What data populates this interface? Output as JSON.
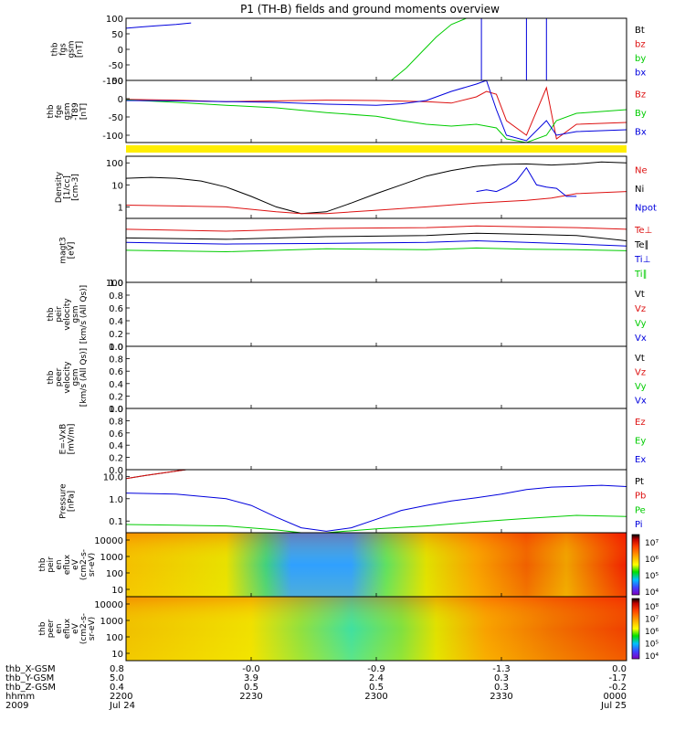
{
  "title": "P1 (TH-B) fields and ground moments overview",
  "colors": {
    "black": "#000000",
    "red": "#dd1111",
    "green": "#00cc00",
    "blue": "#0000dd",
    "yellow_bar": "#ffee00"
  },
  "chart_data": [
    {
      "type": "line",
      "id": "fgs",
      "ylabel": [
        "thb",
        "fgs",
        "gsm",
        "[nT]"
      ],
      "ylim": [
        -100,
        100
      ],
      "yticks": [
        100,
        50,
        0,
        -50,
        -100
      ],
      "legend": [
        {
          "name": "Bt",
          "color": "#000000"
        },
        {
          "name": "bz",
          "color": "#dd1111"
        },
        {
          "name": "by",
          "color": "#00cc00"
        },
        {
          "name": "bx",
          "color": "#0000dd"
        }
      ],
      "series": [
        {
          "name": "bx",
          "color": "#0000dd",
          "x": [
            0,
            0.03,
            0.06,
            0.1,
            0.13
          ],
          "y": [
            68,
            72,
            76,
            80,
            85
          ]
        },
        {
          "name": "by",
          "color": "#00cc00",
          "x": [
            0.53,
            0.56,
            0.59,
            0.62,
            0.65,
            0.68
          ],
          "y": [
            -100,
            -60,
            -10,
            40,
            80,
            100
          ]
        },
        {
          "name": "bx",
          "color": "#0000dd",
          "x": [
            0.69,
            0.71,
            0.71,
            0.8,
            0.8,
            0.84,
            0.84
          ],
          "y": [
            100,
            100,
            -100,
            -100,
            100,
            100,
            -100
          ]
        }
      ]
    },
    {
      "type": "line",
      "id": "fge",
      "ylabel": [
        "thb",
        "fge",
        "gsm",
        "-T89",
        "[nT]"
      ],
      "ylim": [
        -120,
        50
      ],
      "yticks": [
        50,
        0,
        -50,
        -100
      ],
      "legend": [
        {
          "name": "Bz",
          "color": "#dd1111"
        },
        {
          "name": "By",
          "color": "#00cc00"
        },
        {
          "name": "Bx",
          "color": "#0000dd"
        }
      ],
      "series": [
        {
          "name": "Bz",
          "color": "#dd1111",
          "x": [
            0,
            0.1,
            0.2,
            0.3,
            0.4,
            0.5,
            0.6,
            0.65,
            0.7,
            0.72,
            0.74,
            0.76,
            0.8,
            0.84,
            0.86,
            0.9,
            1
          ],
          "y": [
            -2,
            -4,
            -8,
            -6,
            -4,
            -5,
            -8,
            -12,
            5,
            20,
            12,
            -60,
            -100,
            30,
            -110,
            -70,
            -65
          ]
        },
        {
          "name": "By",
          "color": "#00cc00",
          "x": [
            0,
            0.1,
            0.2,
            0.3,
            0.4,
            0.5,
            0.55,
            0.6,
            0.65,
            0.7,
            0.74,
            0.76,
            0.8,
            0.84,
            0.86,
            0.9,
            1
          ],
          "y": [
            -3,
            -10,
            -18,
            -25,
            -38,
            -48,
            -60,
            -70,
            -75,
            -70,
            -80,
            -110,
            -120,
            -100,
            -60,
            -40,
            -30
          ]
        },
        {
          "name": "Bx",
          "color": "#0000dd",
          "x": [
            0,
            0.1,
            0.2,
            0.3,
            0.4,
            0.5,
            0.55,
            0.6,
            0.65,
            0.7,
            0.72,
            0.74,
            0.76,
            0.8,
            0.84,
            0.86,
            0.9,
            1
          ],
          "y": [
            -5,
            -6,
            -8,
            -10,
            -15,
            -18,
            -14,
            -5,
            20,
            40,
            50,
            -30,
            -100,
            -115,
            -60,
            -100,
            -90,
            -85
          ]
        }
      ]
    },
    {
      "type": "line",
      "id": "density",
      "scale": "log",
      "ylabel": [
        "Density",
        "[1/cc]",
        "[cm-3]"
      ],
      "ylim": [
        0.3,
        200
      ],
      "yticks": [
        100,
        10,
        1
      ],
      "legend": [
        {
          "name": "Ne",
          "color": "#dd1111"
        },
        {
          "name": "Ni",
          "color": "#000000"
        },
        {
          "name": "Npot",
          "color": "#0000dd"
        }
      ],
      "series": [
        {
          "name": "Ni",
          "color": "#000000",
          "x": [
            0,
            0.05,
            0.1,
            0.15,
            0.2,
            0.25,
            0.3,
            0.35,
            0.4,
            0.45,
            0.5,
            0.55,
            0.6,
            0.65,
            0.7,
            0.75,
            0.8,
            0.85,
            0.9,
            0.95,
            1
          ],
          "y": [
            20,
            22,
            20,
            15,
            8,
            3,
            1,
            0.5,
            0.6,
            1.5,
            4,
            10,
            25,
            45,
            70,
            85,
            90,
            80,
            90,
            110,
            100
          ]
        },
        {
          "name": "Ne",
          "color": "#dd1111",
          "x": [
            0,
            0.1,
            0.2,
            0.3,
            0.35,
            0.4,
            0.5,
            0.6,
            0.7,
            0.8,
            0.85,
            0.9,
            1
          ],
          "y": [
            1.2,
            1.1,
            1.0,
            0.6,
            0.5,
            0.5,
            0.7,
            1.0,
            1.5,
            2.0,
            2.5,
            4,
            5
          ]
        },
        {
          "name": "Npot",
          "color": "#0000dd",
          "x": [
            0.7,
            0.72,
            0.74,
            0.76,
            0.78,
            0.8,
            0.82,
            0.84,
            0.86,
            0.88,
            0.9
          ],
          "y": [
            5,
            6,
            5,
            8,
            15,
            60,
            10,
            8,
            7,
            3,
            3
          ]
        }
      ]
    },
    {
      "type": "line",
      "id": "temperature",
      "scale": "log",
      "ylabel": [
        "magt3",
        "[eV]"
      ],
      "ylim": [
        100,
        2000
      ],
      "yticks": [
        100
      ],
      "legend": [
        {
          "name": "Te⊥",
          "color": "#dd1111"
        },
        {
          "name": "Te∥",
          "color": "#000000"
        },
        {
          "name": "Ti⊥",
          "color": "#0000dd"
        },
        {
          "name": "Ti∥",
          "color": "#00cc00"
        }
      ],
      "series": [
        {
          "name": "Te⊥",
          "color": "#dd1111",
          "x": [
            0,
            0.2,
            0.4,
            0.6,
            0.7,
            0.8,
            0.9,
            1
          ],
          "y": [
            1200,
            1100,
            1250,
            1300,
            1400,
            1350,
            1300,
            1200
          ]
        },
        {
          "name": "Te∥",
          "color": "#000000",
          "x": [
            0,
            0.2,
            0.4,
            0.6,
            0.7,
            0.8,
            0.9,
            1
          ],
          "y": [
            800,
            750,
            850,
            900,
            1000,
            950,
            900,
            700
          ]
        },
        {
          "name": "Ti⊥",
          "color": "#0000dd",
          "x": [
            0,
            0.2,
            0.4,
            0.6,
            0.7,
            0.8,
            0.9,
            1
          ],
          "y": [
            650,
            600,
            620,
            650,
            700,
            650,
            600,
            550
          ]
        },
        {
          "name": "Ti∥",
          "color": "#00cc00",
          "x": [
            0,
            0.2,
            0.4,
            0.6,
            0.7,
            0.8,
            0.9,
            1
          ],
          "y": [
            450,
            420,
            480,
            460,
            500,
            470,
            460,
            440
          ]
        }
      ]
    },
    {
      "type": "line",
      "id": "peir-vel",
      "ylabel": [
        "thb",
        "peir",
        "velocity",
        "gsm",
        "[km/s (All Qs)]"
      ],
      "ylim": [
        0,
        1
      ],
      "yticks": [
        "0.0",
        "0.2",
        "0.4",
        "0.6",
        "0.8",
        "1.0"
      ],
      "legend": [
        {
          "name": "Vt",
          "color": "#000000"
        },
        {
          "name": "Vz",
          "color": "#dd1111"
        },
        {
          "name": "Vy",
          "color": "#00cc00"
        },
        {
          "name": "Vx",
          "color": "#0000dd"
        }
      ],
      "series": []
    },
    {
      "type": "line",
      "id": "peer-vel",
      "ylabel": [
        "thb",
        "peer",
        "velocity",
        "gsm",
        "[km/s (All Qs)]"
      ],
      "ylim": [
        0,
        1
      ],
      "yticks": [
        "0.0",
        "0.2",
        "0.4",
        "0.6",
        "0.8",
        "1.0"
      ],
      "legend": [
        {
          "name": "Vt",
          "color": "#000000"
        },
        {
          "name": "Vz",
          "color": "#dd1111"
        },
        {
          "name": "Vy",
          "color": "#00cc00"
        },
        {
          "name": "Vx",
          "color": "#0000dd"
        }
      ],
      "series": []
    },
    {
      "type": "line",
      "id": "efield",
      "ylabel": [
        "E=-VxB",
        "[mV/m]"
      ],
      "ylim": [
        0,
        1
      ],
      "yticks": [
        "0.0",
        "0.2",
        "0.4",
        "0.6",
        "0.8",
        "1.0"
      ],
      "legend": [
        {
          "name": "Ez",
          "color": "#dd1111"
        },
        {
          "name": "Ey",
          "color": "#00cc00"
        },
        {
          "name": "Ex",
          "color": "#0000dd"
        }
      ],
      "series": []
    },
    {
      "type": "line",
      "id": "pressure",
      "scale": "log",
      "ylabel": [
        "Pressure",
        "[nPa]"
      ],
      "ylim": [
        0.03,
        20
      ],
      "yticks": [
        "10.0",
        "1.0",
        "0.1"
      ],
      "legend": [
        {
          "name": "Pt",
          "color": "#000000"
        },
        {
          "name": "Pb",
          "color": "#dd1111"
        },
        {
          "name": "Pe",
          "color": "#00cc00"
        },
        {
          "name": "Pi",
          "color": "#0000dd"
        }
      ],
      "series": [
        {
          "name": "Pt",
          "color": "#000000",
          "x": [
            0,
            0.04,
            0.08,
            0.12
          ],
          "y": [
            8,
            11,
            15,
            20
          ]
        },
        {
          "name": "Pb",
          "color": "#dd1111",
          "x": [
            0,
            0.04,
            0.08,
            0.12
          ],
          "y": [
            8,
            11,
            15,
            20
          ]
        },
        {
          "name": "Pi",
          "color": "#0000dd",
          "x": [
            0,
            0.1,
            0.2,
            0.25,
            0.3,
            0.35,
            0.4,
            0.45,
            0.5,
            0.55,
            0.6,
            0.65,
            0.7,
            0.75,
            0.8,
            0.85,
            0.9,
            0.95,
            1
          ],
          "y": [
            1.8,
            1.6,
            1.0,
            0.5,
            0.15,
            0.05,
            0.035,
            0.05,
            0.12,
            0.3,
            0.5,
            0.8,
            1.1,
            1.6,
            2.6,
            3.3,
            3.6,
            4.0,
            3.5
          ]
        },
        {
          "name": "Pe",
          "color": "#00cc00",
          "x": [
            0,
            0.1,
            0.2,
            0.3,
            0.35,
            0.4,
            0.5,
            0.6,
            0.7,
            0.75,
            0.8,
            0.9,
            1
          ],
          "y": [
            0.07,
            0.065,
            0.06,
            0.04,
            0.03,
            0.03,
            0.045,
            0.06,
            0.09,
            0.11,
            0.13,
            0.18,
            0.16
          ]
        }
      ]
    },
    {
      "type": "heatmap",
      "id": "peir-spec",
      "ylabel": [
        "thb",
        "peir",
        "en",
        "eflux",
        "eV",
        "(cm2-s-",
        "sr-eV)"
      ],
      "yticks": [
        "10000",
        "1000",
        "100",
        "10"
      ],
      "colorbar_ticks": [
        "10⁷",
        "10⁶",
        "10⁵",
        "10⁴"
      ]
    },
    {
      "type": "heatmap",
      "id": "peer-spec",
      "ylabel": [
        "thb",
        "peer",
        "en",
        "eflux",
        "eV",
        "(cm2-s-",
        "sr-eV)"
      ],
      "yticks": [
        "10000",
        "1000",
        "100",
        "10"
      ],
      "colorbar_ticks": [
        "10⁸",
        "10⁷",
        "10⁶",
        "10⁵",
        "10⁴"
      ]
    }
  ],
  "time_axis": {
    "rows": [
      {
        "label": "thb_X-GSM",
        "values": [
          "0.8",
          "-0.0",
          "-0.9",
          "-1.3",
          "0.0"
        ]
      },
      {
        "label": "thb_Y-GSM",
        "values": [
          "5.0",
          "3.9",
          "2.4",
          "0.3",
          "-1.7"
        ]
      },
      {
        "label": "thb_Z-GSM",
        "values": [
          "0.4",
          "0.5",
          "0.5",
          "0.3",
          "-0.2"
        ]
      },
      {
        "label": "hhmm",
        "values": [
          "2200",
          "2230",
          "2300",
          "2330",
          "0000"
        ]
      },
      {
        "label": "2009",
        "values": [
          "Jul 24",
          "",
          "",
          "",
          "Jul 25"
        ]
      }
    ]
  }
}
